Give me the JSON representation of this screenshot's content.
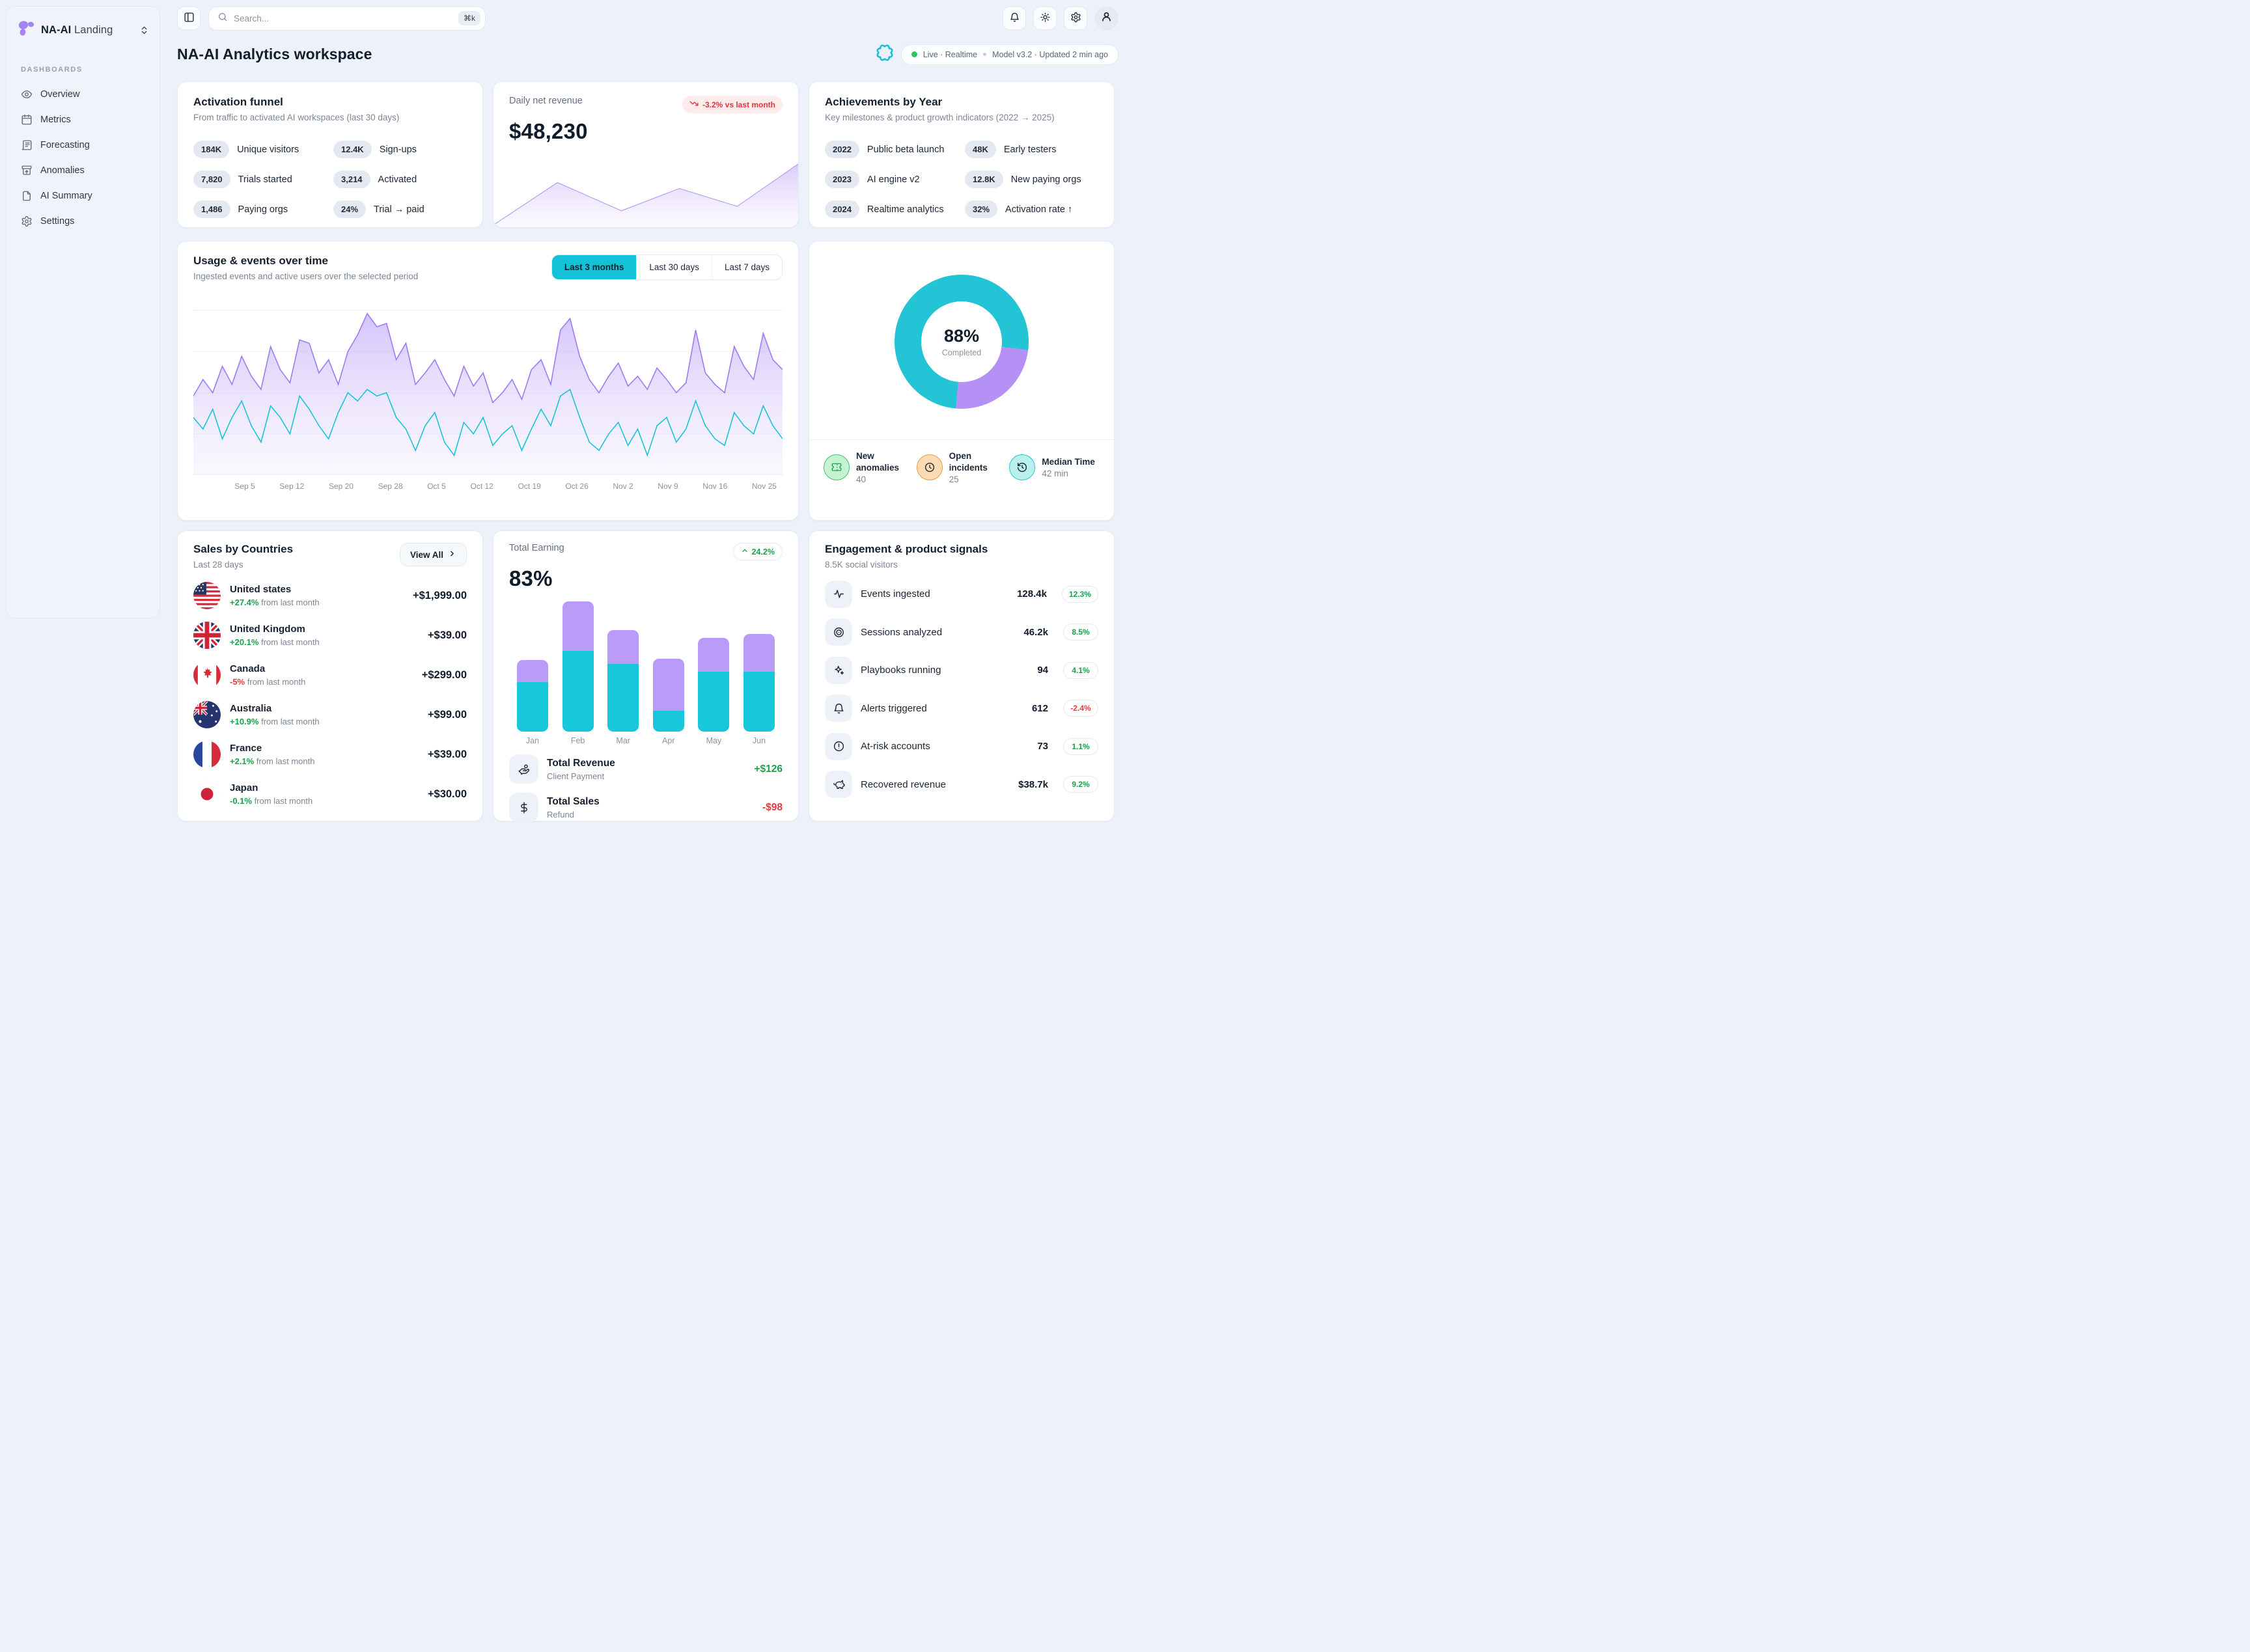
{
  "colors": {
    "accent_cyan": "#22c4d6",
    "accent_purple": "#b591f6",
    "green": "#17a34a",
    "red": "#e23b3c"
  },
  "app": {
    "brand": "NA-AI",
    "brand_suffix": "Landing"
  },
  "sidebar": {
    "section": "DASHBOARDS",
    "items": [
      {
        "label": "Overview",
        "icon": "eye"
      },
      {
        "label": "Metrics",
        "icon": "calendar"
      },
      {
        "label": "Forecasting",
        "icon": "newspaper"
      },
      {
        "label": "Anomalies",
        "icon": "archive-up"
      },
      {
        "label": "AI Summary",
        "icon": "file"
      },
      {
        "label": "Settings",
        "icon": "gear"
      }
    ]
  },
  "topbar": {
    "search_placeholder": "Search...",
    "search_shortcut": "⌘k"
  },
  "header": {
    "title": "NA-AI Analytics workspace",
    "live": "Live · Realtime",
    "model": "Model v3.2 · Updated 2 min ago"
  },
  "funnel": {
    "title": "Activation funnel",
    "subtitle": "From traffic to activated AI workspaces (last 30 days)",
    "stats": [
      {
        "value": "184K",
        "label": "Unique visitors"
      },
      {
        "value": "12.4K",
        "label": "Sign-ups"
      },
      {
        "value": "7,820",
        "label": "Trials started"
      },
      {
        "value": "3,214",
        "label": "Activated"
      },
      {
        "value": "1,486",
        "label": "Paying orgs"
      },
      {
        "value": "24%",
        "label": "Trial → paid"
      }
    ]
  },
  "revenue": {
    "label": "Daily net revenue",
    "badge": "-3.2% vs last month",
    "value": "$48,230",
    "spark_x": [
      0,
      21,
      42,
      61,
      80,
      100
    ],
    "spark_v": [
      3,
      60,
      22,
      52,
      28,
      85
    ]
  },
  "achievements": {
    "title": "Achievements by Year",
    "subtitle": "Key milestones & product growth indicators (2022 → 2025)",
    "stats": [
      {
        "value": "2022",
        "label": "Public beta launch"
      },
      {
        "value": "48K",
        "label": "Early testers"
      },
      {
        "value": "2023",
        "label": "AI engine v2"
      },
      {
        "value": "12.8K",
        "label": "New paying orgs"
      },
      {
        "value": "2024",
        "label": "Realtime analytics"
      },
      {
        "value": "32%",
        "label": "Activation rate ↑"
      }
    ]
  },
  "usage": {
    "title": "Usage & events over time",
    "subtitle": "Ingested events and active users over the selected period",
    "tabs": [
      "Last 3 months",
      "Last 30 days",
      "Last 7 days"
    ],
    "active_tab": "Last 3 months",
    "x_labels": [
      "Sep 5",
      "Sep 12",
      "Sep 20",
      "Sep 28",
      "Oct 5",
      "Oct 12",
      "Oct 19",
      "Oct 26",
      "Nov 2",
      "Nov 9",
      "Nov 16",
      "Nov 25"
    ],
    "series": {
      "events": [
        48,
        58,
        50,
        66,
        55,
        72,
        60,
        52,
        78,
        64,
        56,
        82,
        80,
        62,
        70,
        55,
        75,
        85,
        98,
        90,
        92,
        70,
        80,
        55,
        62,
        70,
        58,
        48,
        66,
        54,
        62,
        44,
        50,
        58,
        46,
        64,
        70,
        55,
        88,
        95,
        72,
        58,
        50,
        60,
        68,
        54,
        60,
        52,
        65,
        58,
        50,
        56,
        88,
        62,
        55,
        50,
        78,
        66,
        58,
        86,
        70,
        64
      ],
      "active_users": [
        35,
        28,
        40,
        22,
        35,
        45,
        30,
        20,
        42,
        35,
        25,
        48,
        40,
        30,
        22,
        38,
        50,
        45,
        52,
        48,
        50,
        35,
        28,
        15,
        30,
        38,
        20,
        12,
        32,
        25,
        35,
        18,
        25,
        30,
        15,
        28,
        40,
        30,
        48,
        52,
        35,
        20,
        15,
        25,
        32,
        18,
        28,
        12,
        30,
        35,
        20,
        28,
        45,
        30,
        22,
        18,
        38,
        30,
        25,
        42,
        30,
        22
      ]
    }
  },
  "completion": {
    "value": "88%",
    "label": "Completed",
    "arc": {
      "purple_start": 97,
      "purple_end": 185
    },
    "stats": [
      {
        "label": "New anomalies",
        "value": "40",
        "icon": "ticket",
        "color": "green"
      },
      {
        "label": "Open incidents",
        "value": "25",
        "icon": "clock",
        "color": "orange"
      },
      {
        "label": "Median Time",
        "value": "42 min",
        "icon": "history",
        "color": "cyan"
      }
    ]
  },
  "sales": {
    "title": "Sales by Countries",
    "subtitle": "Last 28 days",
    "view_all": "View All",
    "rows": [
      {
        "country": "United states",
        "delta": "+27.4%",
        "note": "from last month",
        "amount": "+$1,999.00",
        "delta_color": "green"
      },
      {
        "country": "United Kingdom",
        "delta": "+20.1%",
        "note": "from last month",
        "amount": "+$39.00",
        "delta_color": "green"
      },
      {
        "country": "Canada",
        "delta": "-5%",
        "note": "from last month",
        "amount": "+$299.00",
        "delta_color": "red"
      },
      {
        "country": "Australia",
        "delta": "+10.9%",
        "note": "from last month",
        "amount": "+$99.00",
        "delta_color": "green"
      },
      {
        "country": "France",
        "delta": "+2.1%",
        "note": "from last month",
        "amount": "+$39.00",
        "delta_color": "green"
      },
      {
        "country": "Japan",
        "delta": "-0.1%",
        "note": "from last month",
        "amount": "+$30.00",
        "delta_color": "green"
      }
    ]
  },
  "earning": {
    "label": "Total Earning",
    "delta": "24.2%",
    "value": "83%",
    "months": [
      "Jan",
      "Feb",
      "Mar",
      "Apr",
      "May",
      "Jun"
    ],
    "bars": [
      {
        "cyan": 38,
        "purple": 17
      },
      {
        "cyan": 62,
        "purple": 38
      },
      {
        "cyan": 52,
        "purple": 26
      },
      {
        "cyan": 16,
        "purple": 40
      },
      {
        "cyan": 46,
        "purple": 26
      },
      {
        "cyan": 46,
        "purple": 29
      }
    ],
    "rows": [
      {
        "title": "Total Revenue",
        "subtitle": "Client Payment",
        "amount": "+$126",
        "icon": "hand-coins",
        "color": "green"
      },
      {
        "title": "Total Sales",
        "subtitle": "Refund",
        "amount": "-$98",
        "icon": "dollar",
        "color": "red"
      }
    ]
  },
  "engagement": {
    "title": "Engagement & product signals",
    "subtitle": "8.5K social visitors",
    "rows": [
      {
        "label": "Events ingested",
        "value": "128.4k",
        "delta": "12.3%",
        "color": "green",
        "icon": "activity"
      },
      {
        "label": "Sessions analyzed",
        "value": "46.2k",
        "delta": "8.5%",
        "color": "green",
        "icon": "target"
      },
      {
        "label": "Playbooks running",
        "value": "94",
        "delta": "4.1%",
        "color": "green",
        "icon": "sparkles"
      },
      {
        "label": "Alerts triggered",
        "value": "612",
        "delta": "-2.4%",
        "color": "red",
        "icon": "bell"
      },
      {
        "label": "At-risk accounts",
        "value": "73",
        "delta": "1.1%",
        "color": "green",
        "icon": "alert-circle"
      },
      {
        "label": "Recovered revenue",
        "value": "$38.7k",
        "delta": "9.2%",
        "color": "green",
        "icon": "piggy-bank"
      }
    ]
  }
}
